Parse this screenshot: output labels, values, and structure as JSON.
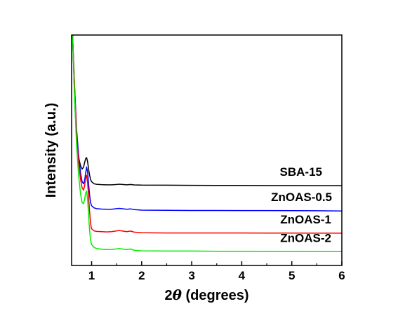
{
  "chart_data": {
    "type": "line",
    "xlabel_prefix": "2",
    "xlabel_symbol": "θ",
    "xlabel_suffix": " (degrees)",
    "ylabel": "Intensity (a.u.)",
    "xlim": [
      0.6,
      6
    ],
    "xticks": [
      1,
      2,
      3,
      4,
      5,
      6
    ],
    "xtick_labels": [
      "1",
      "2",
      "3",
      "4",
      "5",
      "6"
    ],
    "yticks_labeled": false,
    "legend": "none",
    "grid": false,
    "series": [
      {
        "name": "SBA-15",
        "color": "#000000",
        "points": [
          [
            0.62,
            22.0
          ],
          [
            0.66,
            16.0
          ],
          [
            0.7,
            12.0
          ],
          [
            0.74,
            10.3
          ],
          [
            0.78,
            9.5
          ],
          [
            0.81,
            9.2
          ],
          [
            0.84,
            9.4
          ],
          [
            0.86,
            9.8
          ],
          [
            0.88,
            10.2
          ],
          [
            0.9,
            10.3
          ],
          [
            0.92,
            9.9
          ],
          [
            0.94,
            9.2
          ],
          [
            0.96,
            8.6
          ],
          [
            0.98,
            8.2
          ],
          [
            1.0,
            8.0
          ],
          [
            1.05,
            7.8
          ],
          [
            1.1,
            7.75
          ],
          [
            1.2,
            7.72
          ],
          [
            1.3,
            7.7
          ],
          [
            1.4,
            7.7
          ],
          [
            1.5,
            7.73
          ],
          [
            1.55,
            7.76
          ],
          [
            1.6,
            7.74
          ],
          [
            1.7,
            7.7
          ],
          [
            1.78,
            7.73
          ],
          [
            1.85,
            7.69
          ],
          [
            2.0,
            7.67
          ],
          [
            2.5,
            7.66
          ],
          [
            3.0,
            7.65
          ],
          [
            3.5,
            7.64
          ],
          [
            4.0,
            7.64
          ],
          [
            4.5,
            7.63
          ],
          [
            5.0,
            7.63
          ],
          [
            5.5,
            7.62
          ],
          [
            6.0,
            7.62
          ]
        ]
      },
      {
        "name": "ZnOAS-0.5",
        "color": "#0000ff",
        "points": [
          [
            0.62,
            22.0
          ],
          [
            0.66,
            17.0
          ],
          [
            0.7,
            13.0
          ],
          [
            0.74,
            10.5
          ],
          [
            0.78,
            8.8
          ],
          [
            0.81,
            8.0
          ],
          [
            0.84,
            7.8
          ],
          [
            0.86,
            8.1
          ],
          [
            0.88,
            8.8
          ],
          [
            0.9,
            9.4
          ],
          [
            0.92,
            8.9
          ],
          [
            0.94,
            7.8
          ],
          [
            0.96,
            6.7
          ],
          [
            0.98,
            6.0
          ],
          [
            1.0,
            5.7
          ],
          [
            1.05,
            5.5
          ],
          [
            1.1,
            5.42
          ],
          [
            1.2,
            5.38
          ],
          [
            1.3,
            5.36
          ],
          [
            1.4,
            5.37
          ],
          [
            1.5,
            5.42
          ],
          [
            1.55,
            5.45
          ],
          [
            1.6,
            5.42
          ],
          [
            1.7,
            5.36
          ],
          [
            1.78,
            5.4
          ],
          [
            1.85,
            5.33
          ],
          [
            2.0,
            5.28
          ],
          [
            2.5,
            5.26
          ],
          [
            3.0,
            5.25
          ],
          [
            3.5,
            5.25
          ],
          [
            4.0,
            5.24
          ],
          [
            4.5,
            5.24
          ],
          [
            5.0,
            5.23
          ],
          [
            5.5,
            5.22
          ],
          [
            6.0,
            5.2
          ]
        ]
      },
      {
        "name": "ZnOAS-1",
        "color": "#ff0000",
        "points": [
          [
            0.62,
            22.0
          ],
          [
            0.66,
            17.0
          ],
          [
            0.7,
            12.5
          ],
          [
            0.74,
            9.8
          ],
          [
            0.78,
            8.2
          ],
          [
            0.81,
            7.4
          ],
          [
            0.84,
            7.2
          ],
          [
            0.86,
            7.6
          ],
          [
            0.88,
            8.3
          ],
          [
            0.9,
            8.6
          ],
          [
            0.92,
            7.9
          ],
          [
            0.94,
            6.6
          ],
          [
            0.96,
            5.1
          ],
          [
            0.98,
            4.0
          ],
          [
            1.0,
            3.5
          ],
          [
            1.05,
            3.3
          ],
          [
            1.1,
            3.25
          ],
          [
            1.2,
            3.22
          ],
          [
            1.3,
            3.2
          ],
          [
            1.4,
            3.22
          ],
          [
            1.5,
            3.3
          ],
          [
            1.55,
            3.34
          ],
          [
            1.6,
            3.3
          ],
          [
            1.7,
            3.22
          ],
          [
            1.78,
            3.28
          ],
          [
            1.85,
            3.18
          ],
          [
            2.0,
            3.12
          ],
          [
            2.5,
            3.1
          ],
          [
            3.0,
            3.1
          ],
          [
            3.5,
            3.1
          ],
          [
            4.0,
            3.1
          ],
          [
            4.5,
            3.09
          ],
          [
            5.0,
            3.09
          ],
          [
            5.5,
            3.08
          ],
          [
            6.0,
            3.08
          ]
        ]
      },
      {
        "name": "ZnOAS-2",
        "color": "#00ee00",
        "points": [
          [
            0.62,
            22.0
          ],
          [
            0.66,
            16.0
          ],
          [
            0.7,
            11.5
          ],
          [
            0.74,
            8.6
          ],
          [
            0.78,
            6.8
          ],
          [
            0.81,
            6.0
          ],
          [
            0.84,
            5.9
          ],
          [
            0.86,
            6.3
          ],
          [
            0.88,
            6.9
          ],
          [
            0.9,
            7.1
          ],
          [
            0.92,
            6.3
          ],
          [
            0.94,
            4.8
          ],
          [
            0.96,
            3.3
          ],
          [
            0.98,
            2.4
          ],
          [
            1.0,
            2.0
          ],
          [
            1.05,
            1.72
          ],
          [
            1.1,
            1.62
          ],
          [
            1.2,
            1.55
          ],
          [
            1.3,
            1.52
          ],
          [
            1.4,
            1.53
          ],
          [
            1.5,
            1.58
          ],
          [
            1.55,
            1.62
          ],
          [
            1.6,
            1.58
          ],
          [
            1.7,
            1.52
          ],
          [
            1.78,
            1.57
          ],
          [
            1.85,
            1.45
          ],
          [
            2.0,
            1.4
          ],
          [
            2.5,
            1.38
          ],
          [
            3.0,
            1.38
          ],
          [
            3.5,
            1.36
          ],
          [
            4.0,
            1.35
          ],
          [
            4.5,
            1.34
          ],
          [
            5.0,
            1.34
          ],
          [
            5.5,
            1.33
          ],
          [
            6.0,
            1.32
          ]
        ]
      }
    ]
  }
}
